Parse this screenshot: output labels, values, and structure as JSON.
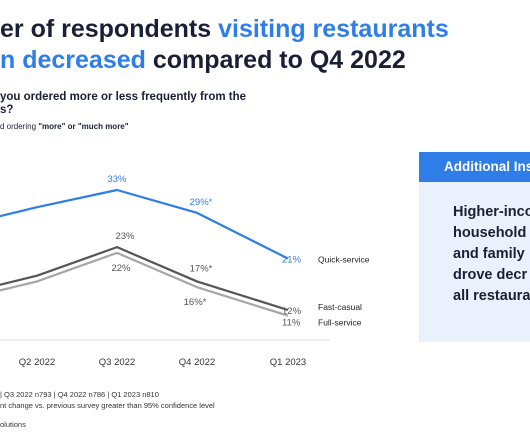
{
  "title": {
    "line1_prefix": "er of respondents ",
    "line1_accent": "visiting restaurants",
    "line2_accent": "n decreased",
    "line2_suffix": " compared to Q4 2022"
  },
  "question": {
    "line1": "you ordered more or less frequently from the",
    "line2": "s?"
  },
  "note": {
    "prefix": "d ordering ",
    "emphasis": "\"more\" or \"much more\""
  },
  "footnotes": [
    "| Q3 2022 n793 | Q4 2022 n786 | Q1 2023 n810",
    "nt change vs. previous survey greater than 95% confidence level"
  ],
  "source": "olutions",
  "info_box": {
    "header": "Additional Ins",
    "body": [
      "Higher-inco",
      "household",
      "and family",
      "drove decr",
      "all restaura"
    ]
  },
  "colors": {
    "quick_service": "#2f7ee8",
    "fast_casual": "#555555",
    "full_service": "#a6a6a6",
    "accent": "#2f7ee8"
  },
  "chart_data": {
    "type": "line",
    "categories": [
      "Q2 2022",
      "Q3 2022",
      "Q4 2022",
      "Q1 2023"
    ],
    "ylim": [
      5,
      40
    ],
    "series": [
      {
        "name": "Quick-service",
        "first_value": 28,
        "values": [
          30,
          33,
          29,
          21
        ],
        "point_labels": [
          "",
          "33%",
          "29%*",
          "21%"
        ],
        "color": "#2f7ee8"
      },
      {
        "name": "Fast-casual",
        "first_value": 16,
        "values": [
          18,
          23,
          17,
          12
        ],
        "point_labels": [
          "",
          "23%",
          "17%*",
          "12%"
        ],
        "color": "#555555"
      },
      {
        "name": "Full-service",
        "first_value": 15,
        "values": [
          17,
          22,
          16,
          11
        ],
        "point_labels": [
          "",
          "22%",
          "16%*",
          "11%"
        ],
        "color": "#a6a6a6"
      }
    ]
  }
}
